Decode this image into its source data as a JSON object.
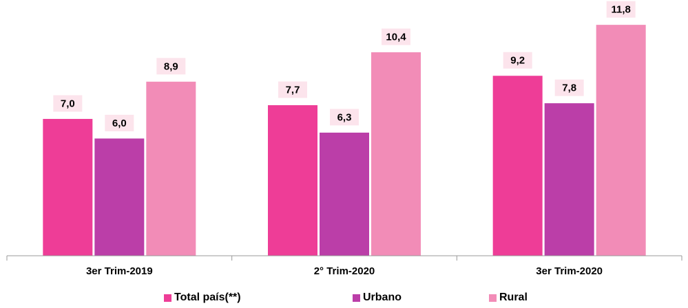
{
  "chart_data": {
    "type": "bar",
    "categories": [
      "3er Trim-2019",
      "2° Trim-2020",
      "3er Trim-2020"
    ],
    "series": [
      {
        "name": "Total país(**)",
        "color": "#EE3D97",
        "values": [
          7.0,
          7.7,
          9.2
        ],
        "labels": [
          "7,0",
          "7,7",
          "9,2"
        ]
      },
      {
        "name": "Urbano",
        "color": "#BB3EA8",
        "values": [
          6.0,
          6.3,
          7.8
        ],
        "labels": [
          "6,0",
          "6,3",
          "7,8"
        ]
      },
      {
        "name": "Rural",
        "color": "#F28CB7",
        "values": [
          8.9,
          10.4,
          11.8
        ],
        "labels": [
          "8,9",
          "10,4",
          "11,8"
        ]
      }
    ],
    "ylim": [
      0,
      13.05
    ],
    "label_background": "#FCE4EC",
    "grid": false,
    "legend_position": "bottom"
  }
}
